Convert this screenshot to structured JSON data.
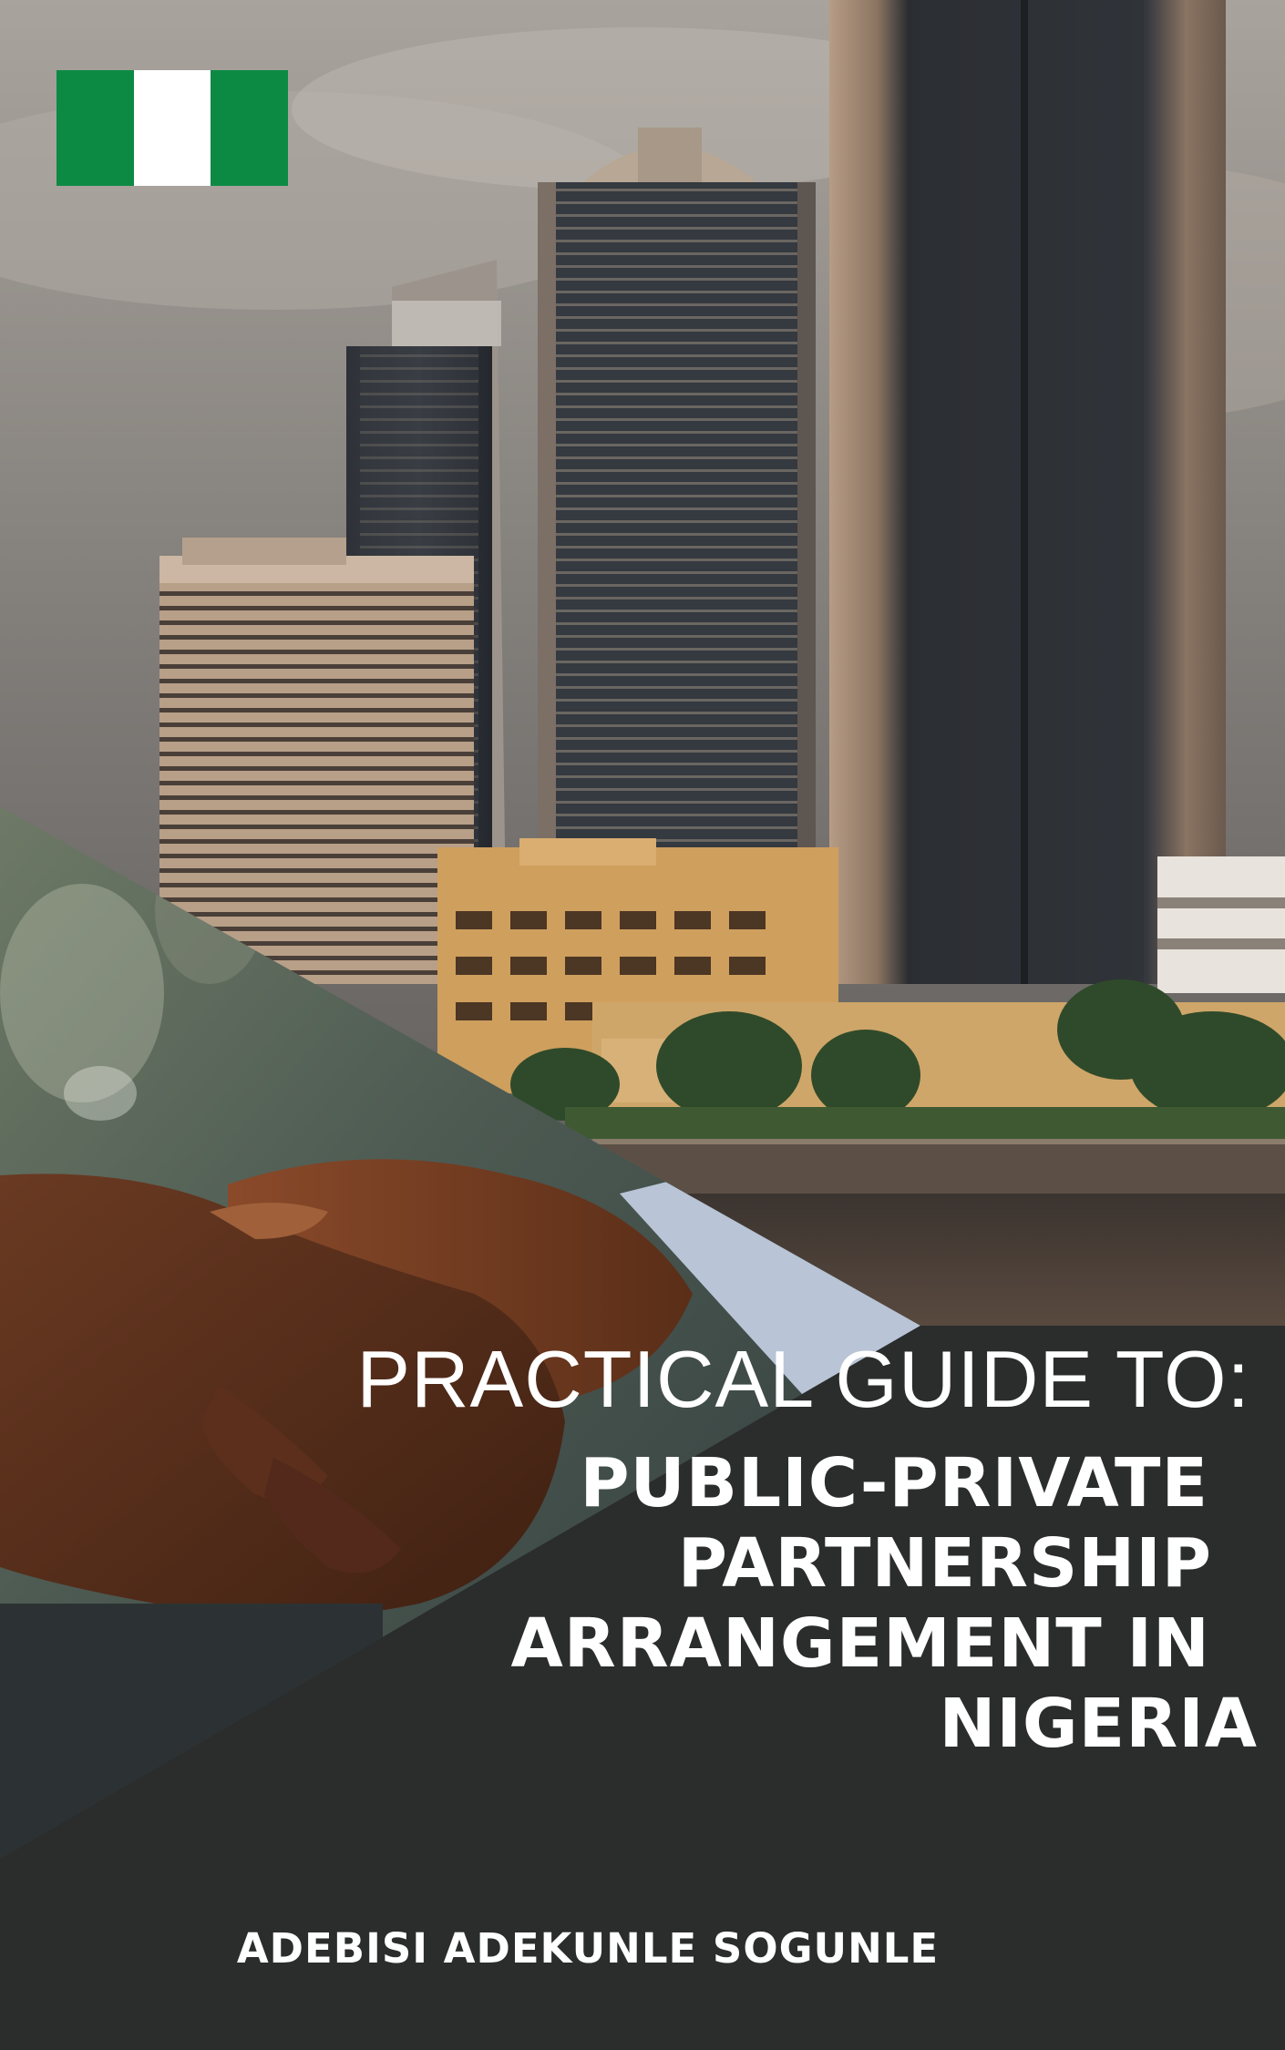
{
  "book": {
    "title_prefix": "PRACTICAL GUIDE TO:",
    "title_lines": [
      "PUBLIC-PRIVATE",
      "PARTNERSHIP",
      "ARRANGEMENT IN",
      "NIGERIA"
    ],
    "author": "ADEBISI ADEKUNLE SOGUNLE"
  },
  "flag": {
    "country": "Nigeria",
    "colors": [
      "#0c8a43",
      "#ffffff",
      "#0c8a43"
    ]
  },
  "theme": {
    "panel_color": "#2a2d2c",
    "text_color": "#ffffff"
  }
}
